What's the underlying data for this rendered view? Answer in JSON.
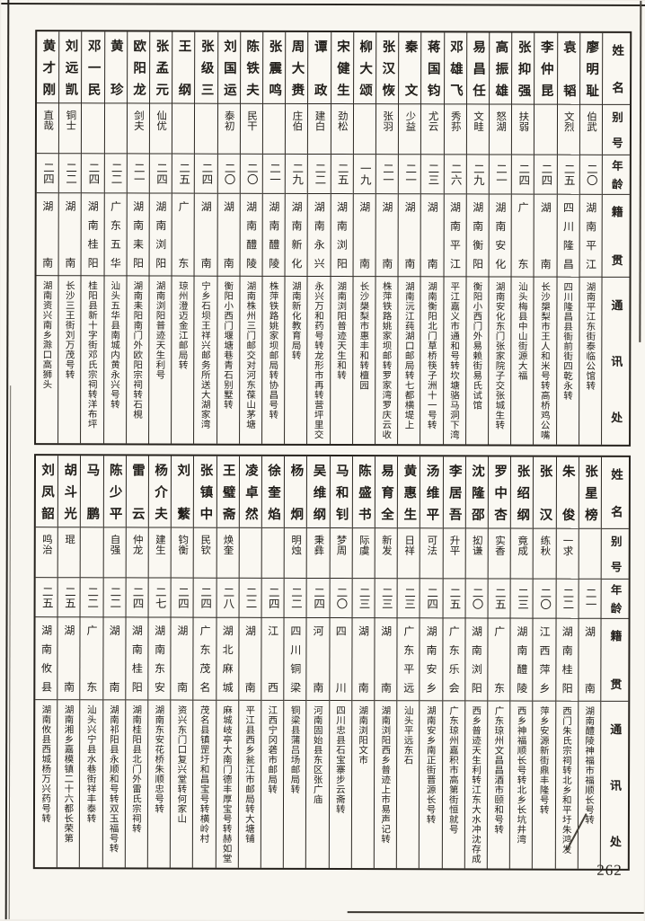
{
  "page_number": "262",
  "headers": {
    "name": "姓名",
    "alias": "别号",
    "age": "年龄",
    "origin": "籍贯",
    "address": "通讯处"
  },
  "tables": [
    {
      "people": [
        {
          "name": "廖明耻",
          "alias": "伯武",
          "age": "二〇",
          "origin": "湖南平江",
          "address": "湖南平江东街泰临公馆转"
        },
        {
          "name": "袁韬",
          "alias": "文烈",
          "age": "二五",
          "origin": "四川隆昌",
          "address": "四川隆昌县衙前街四乾永转"
        },
        {
          "name": "李仲昆",
          "alias": "",
          "age": "二四",
          "origin": "湖南",
          "address": "长沙槼梨市王人和米号转高桥鸡公嘴"
        },
        {
          "name": "张抑强",
          "alias": "扶弱",
          "age": "二四",
          "origin": "广东",
          "address": "汕头梅县中山街源大福"
        },
        {
          "name": "高振雄",
          "alias": "怒湖",
          "age": "二一",
          "origin": "湖南安化",
          "address": "湖南安化东门张家院子交张城生转"
        },
        {
          "name": "易昌任",
          "alias": "文畦",
          "age": "二九",
          "origin": "湖南衡阳",
          "address": "衡阳小西门外易赖街易氏试馆"
        },
        {
          "name": "邓雄飞",
          "alias": "秀荪",
          "age": "二六",
          "origin": "湖南平江",
          "address": "平江嘉义市通和号转坎塘骆马洞下湾"
        },
        {
          "name": "蒋国钧",
          "alias": "尤云",
          "age": "二三",
          "origin": "湖南",
          "address": "湖南衡阳北门草桥筷子洲十一号转"
        },
        {
          "name": "秦文",
          "alias": "少益",
          "age": "二一",
          "origin": "湖南",
          "address": "湖南沅江莼湖口邮局转七都横堤上"
        },
        {
          "name": "张汉恢",
          "alias": "张羽",
          "age": "二一",
          "origin": "湖南",
          "address": "株萍铁路姚家坝邮转罗家湾罗庆云收"
        },
        {
          "name": "柳大颂",
          "alias": "",
          "age": "一九",
          "origin": "湖南",
          "address": "长沙槼梨市惠丰和转檀园"
        },
        {
          "name": "宋健生",
          "alias": "劲松",
          "age": "二五",
          "origin": "湖南浏阳",
          "address": "湖南浏阳普迹天生和转"
        },
        {
          "name": "谭政",
          "alias": "建白",
          "age": "二二",
          "origin": "湖南永兴",
          "address": "永兴万和药号转龙形市再转营坪里交"
        },
        {
          "name": "周大赉",
          "alias": "庄伯",
          "age": "二九",
          "origin": "湖南新化",
          "address": "湖南新化教育局转"
        },
        {
          "name": "张震鸣",
          "alias": "",
          "age": "二一",
          "origin": "湖南醴陵",
          "address": "株萍铁路姚家坝邮局转协昌号转"
        },
        {
          "name": "陈铁夫",
          "alias": "民干",
          "age": "二〇",
          "origin": "湖南醴陵",
          "address": "湖南株州三门邮交对河东葆山茅塘"
        },
        {
          "name": "刘国运",
          "alias": "泰初",
          "age": "二〇",
          "origin": "湖南",
          "address": "衡阳小西门堰塘巷青石别墅转"
        },
        {
          "name": "张级三",
          "alias": "",
          "age": "二四",
          "origin": "湖南",
          "address": "宁乡石坝王祥兴邮务所送大湖家湾"
        },
        {
          "name": "王纲",
          "alias": "",
          "age": "二五",
          "origin": "广东",
          "address": "琼州澄迈金江邮局转"
        },
        {
          "name": "张孟元",
          "alias": "仙优",
          "age": "二四",
          "origin": "湖南浏阳",
          "address": "湖南浏阳普迹天生利号"
        },
        {
          "name": "欧阳龙",
          "alias": "剑夫",
          "age": "二一",
          "origin": "湖南耒阳",
          "address": "湖南耒阳南门外欧阳宗祠转石梘"
        },
        {
          "name": "黄珍",
          "alias": "",
          "age": "二二",
          "origin": "广东五华",
          "address": "汕头五华县南城内黄永兴号转"
        },
        {
          "name": "邓一民",
          "alias": "",
          "age": "二四",
          "origin": "湖南桂阳",
          "address": "桂阳县新十字街邓氏宗祠转洋布坪"
        },
        {
          "name": "刘远凯",
          "alias": "铜士",
          "age": "二二",
          "origin": "湖南",
          "address": "长沙三王街刘万茂号转"
        },
        {
          "name": "黄才刚",
          "alias": "直哉",
          "age": "二四",
          "origin": "湖南",
          "address": "湖南资兴南乡滁口高狮头"
        }
      ]
    },
    {
      "people": [
        {
          "name": "张星榜",
          "alias": "",
          "age": "二一",
          "origin": "湖南",
          "address": "湖南醴陵神福市福顺长号转"
        },
        {
          "name": "朱俊",
          "alias": "一求",
          "age": "二二",
          "origin": "湖南桂阳",
          "address": "西门朱氏宗祠转北乡和平圩朱鸿发"
        },
        {
          "name": "张汉",
          "alias": "练秋",
          "age": "二〇",
          "origin": "江西萍乡",
          "address": "萍乡安源新街鼎丰隆号转"
        },
        {
          "name": "张绍纲",
          "alias": "竟成",
          "age": "二三",
          "origin": "湖南醴陵",
          "address": "西乡神福顺长号转北乡长坑井湾"
        },
        {
          "name": "罗中杏",
          "alias": "实香",
          "age": "二五",
          "origin": "广东",
          "address": "广东琼州文昌昌酒市颐和号转"
        },
        {
          "name": "沈隆邵",
          "alias": "抝谦",
          "age": "二〇",
          "origin": "湖南浏阳",
          "address": "西乡普迹天生利转江东大水冲沈存成"
        },
        {
          "name": "李居吾",
          "alias": "升平",
          "age": "二五",
          "origin": "广东乐会",
          "address": "广东琼州嘉积市高第街恒就号"
        },
        {
          "name": "汤维平",
          "alias": "可法",
          "age": "二四",
          "origin": "湖南安乡",
          "address": "湖南安乡南正街晋源长号转"
        },
        {
          "name": "黄惠生",
          "alias": "日祥",
          "age": "二三",
          "origin": "广东平远",
          "address": "汕头平远东石"
        },
        {
          "name": "易育全",
          "alias": "新发",
          "age": "二三",
          "origin": "湖南",
          "address": "湖南浏阳西乡普迹上市易声记转"
        },
        {
          "name": "陈盛书",
          "alias": "际虞",
          "age": "二三",
          "origin": "湖南",
          "address": "湖南浏阳文市"
        },
        {
          "name": "马和钊",
          "alias": "梦周",
          "age": "二〇",
          "origin": "四川",
          "address": "四川忠县石宝寨步云斋转"
        },
        {
          "name": "吴维纲",
          "alias": "秉彝",
          "age": "二四",
          "origin": "河南",
          "address": "河南固始县东区张广庙"
        },
        {
          "name": "杨炯",
          "alias": "明烛",
          "age": "二二",
          "origin": "四川铜梁",
          "address": "铜梁县蒲吕场邮局转"
        },
        {
          "name": "徐奎焰",
          "alias": "",
          "age": "二四",
          "origin": "江西",
          "address": "江西宁冈砻市邮局转"
        },
        {
          "name": "凌卓然",
          "alias": "",
          "age": "二二",
          "origin": "湖南",
          "address": "平江县西乡瓮江市邮局转大塘铺"
        },
        {
          "name": "王璧斋",
          "alias": "焕奎",
          "age": "二八",
          "origin": "湖北麻城",
          "address": "麻城岐亭大南门德丰厚宝号转赫如堂"
        },
        {
          "name": "张镇中",
          "alias": "民钦",
          "age": "二四",
          "origin": "广东茂名",
          "address": "茂名县镇罡圩和昌宝号转横岭村"
        },
        {
          "name": "刘蘩",
          "alias": "钧衡",
          "age": "二四",
          "origin": "湖南",
          "address": "资兴东门口复兴堂转何家山"
        },
        {
          "name": "杨介夫",
          "alias": "建生",
          "age": "二七",
          "origin": "湖南东安",
          "address": "湖南东安花桥朱顺忠号转"
        },
        {
          "name": "雷云",
          "alias": "仲龙",
          "age": "二四",
          "origin": "湖南桂阳",
          "address": "湖南桂阳县北门外雷氏宗祠转"
        },
        {
          "name": "陈少平",
          "alias": "自强",
          "age": "二二",
          "origin": "湖南",
          "address": "湖南祁阳县永顺和号转双玉福号转"
        },
        {
          "name": "马鹏",
          "alias": "",
          "age": "二二",
          "origin": "广东",
          "address": "汕头兴宁县水巷街祥丰泰转"
        },
        {
          "name": "胡斗光",
          "alias": "琨",
          "age": "二五",
          "origin": "湖南",
          "address": "湖南湘乡嘉模镇二十六都长荣第"
        },
        {
          "name": "刘凤韶",
          "alias": "鸣治",
          "age": "二五",
          "origin": "湖南攸县",
          "address": "湖南攸县西城杨万兴药号转"
        }
      ]
    }
  ]
}
